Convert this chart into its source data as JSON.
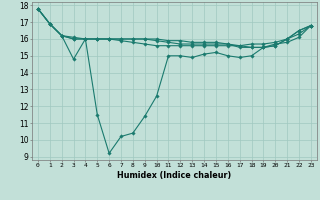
{
  "title": "",
  "xlabel": "Humidex (Indice chaleur)",
  "xlim": [
    -0.5,
    23.5
  ],
  "ylim": [
    8.8,
    18.2
  ],
  "xticks": [
    0,
    1,
    2,
    3,
    4,
    5,
    6,
    7,
    8,
    9,
    10,
    11,
    12,
    13,
    14,
    15,
    16,
    17,
    18,
    19,
    20,
    21,
    22,
    23
  ],
  "yticks": [
    9,
    10,
    11,
    12,
    13,
    14,
    15,
    16,
    17,
    18
  ],
  "bg_color": "#c2e0d8",
  "grid_color": "#a0c8c0",
  "line_color": "#1a7a6e",
  "lines": [
    [
      17.8,
      16.9,
      16.2,
      14.8,
      16.0,
      11.5,
      9.2,
      10.2,
      10.4,
      11.4,
      12.6,
      15.0,
      15.0,
      14.9,
      15.1,
      15.2,
      15.0,
      14.9,
      15.0,
      15.5,
      15.6,
      16.0,
      16.5,
      16.8
    ],
    [
      17.8,
      16.9,
      16.2,
      16.1,
      16.0,
      16.0,
      16.0,
      15.9,
      15.8,
      15.7,
      15.6,
      15.6,
      15.6,
      15.6,
      15.6,
      15.6,
      15.6,
      15.6,
      15.7,
      15.7,
      15.8,
      16.0,
      16.5,
      16.8
    ],
    [
      17.8,
      16.9,
      16.2,
      16.0,
      16.0,
      16.0,
      16.0,
      16.0,
      16.0,
      16.0,
      15.9,
      15.8,
      15.7,
      15.7,
      15.7,
      15.7,
      15.7,
      15.6,
      15.5,
      15.5,
      15.7,
      15.8,
      16.1,
      16.8
    ],
    [
      17.8,
      16.9,
      16.2,
      16.0,
      16.0,
      16.0,
      16.0,
      16.0,
      16.0,
      16.0,
      16.0,
      15.9,
      15.9,
      15.8,
      15.8,
      15.8,
      15.7,
      15.5,
      15.5,
      15.5,
      15.6,
      16.0,
      16.3,
      16.8
    ]
  ]
}
